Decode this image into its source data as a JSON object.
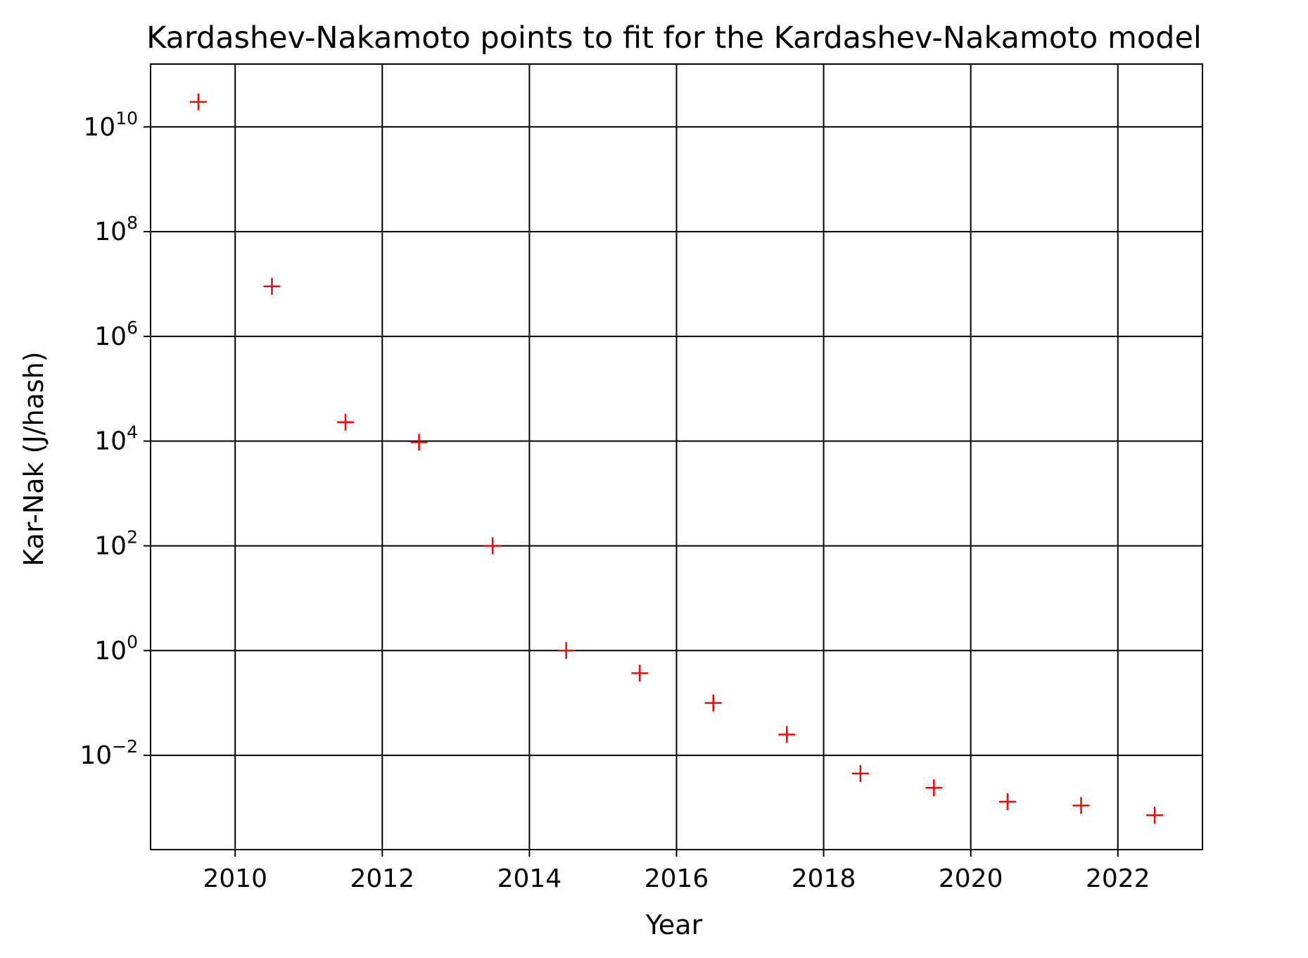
{
  "chart_data": {
    "type": "scatter",
    "title": "Kardashev-Nakamoto points to fit for the Kardashev-Nakamoto model",
    "xlabel": "Year",
    "ylabel": "Kar-Nak (J/hash)",
    "xlim": [
      2008.85,
      2023.15
    ],
    "ylim_log10": [
      -3.8,
      11.2
    ],
    "y_scale": "log",
    "grid": true,
    "x_ticks": [
      2010,
      2012,
      2014,
      2016,
      2018,
      2020,
      2022
    ],
    "x_tick_labels": [
      "2010",
      "2012",
      "2014",
      "2016",
      "2018",
      "2020",
      "2022"
    ],
    "y_ticks_log10": [
      -2,
      0,
      2,
      4,
      6,
      8,
      10
    ],
    "y_tick_labels": [
      {
        "base": "10",
        "exp": "−2"
      },
      {
        "base": "10",
        "exp": "0"
      },
      {
        "base": "10",
        "exp": "2"
      },
      {
        "base": "10",
        "exp": "4"
      },
      {
        "base": "10",
        "exp": "6"
      },
      {
        "base": "10",
        "exp": "8"
      },
      {
        "base": "10",
        "exp": "10"
      }
    ],
    "marker": "+",
    "marker_color": "#ff0000",
    "series": [
      {
        "x": [
          2009.5,
          2010.5,
          2011.5,
          2012.5,
          2013.5,
          2014.5,
          2015.5,
          2016.5,
          2017.5,
          2018.5,
          2019.5,
          2020.5,
          2021.5,
          2022.5
        ],
        "y": [
          30000000000.0,
          9000000.0,
          23000.0,
          9500.0,
          100.0,
          1.0,
          0.37,
          0.1,
          0.025,
          0.0045,
          0.0024,
          0.0013,
          0.0011,
          0.00072
        ]
      }
    ]
  }
}
